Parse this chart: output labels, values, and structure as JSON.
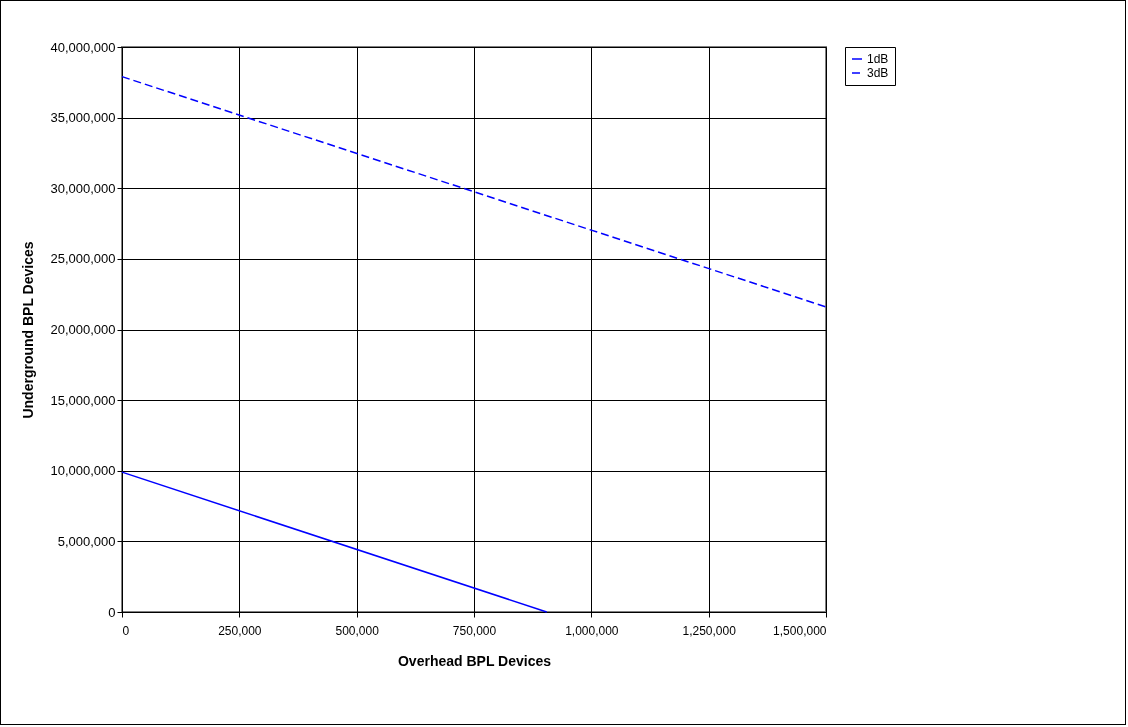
{
  "chart_data": {
    "type": "line",
    "xlabel": "Overhead BPL Devices",
    "ylabel": "Underground BPL Devices",
    "xlim": [
      0,
      1500000
    ],
    "xticks": [
      0,
      {
        "value": 250000,
        "label": "250,000"
      },
      {
        "value": 500000,
        "label": "500,000"
      },
      {
        "value": 750000,
        "label": "750,000"
      },
      {
        "value": 1000000,
        "label": "1,000,000"
      },
      {
        "value": 1250000,
        "label": "1,250,000"
      },
      {
        "value": 1500000,
        "label": "1,500,000"
      }
    ],
    "ylim": [
      0,
      40000000
    ],
    "yticks": [
      0,
      {
        "value": 5000000,
        "label": "5,000,000"
      },
      {
        "value": 10000000,
        "label": "10,000,000"
      },
      {
        "value": 15000000,
        "label": "15,000,000"
      },
      {
        "value": 20000000,
        "label": "20,000,000"
      },
      {
        "value": 25000000,
        "label": "25,000,000"
      },
      {
        "value": 30000000,
        "label": "30,000,000"
      },
      {
        "value": 35000000,
        "label": "35,000,000"
      },
      {
        "value": 40000000,
        "label": "40,000,000"
      }
    ],
    "grid": true,
    "legend": "right",
    "marker": "none",
    "series": [
      {
        "name": "1dB",
        "color": "#0000ff",
        "line_style": "solid",
        "x": [
          0,
          905000
        ],
        "values": [
          9900000,
          0
        ]
      },
      {
        "name": "3dB",
        "color": "#0000ff",
        "line_style": "dashed",
        "x": [
          0,
          1500000
        ],
        "values": [
          37900000,
          21600000
        ]
      }
    ]
  }
}
